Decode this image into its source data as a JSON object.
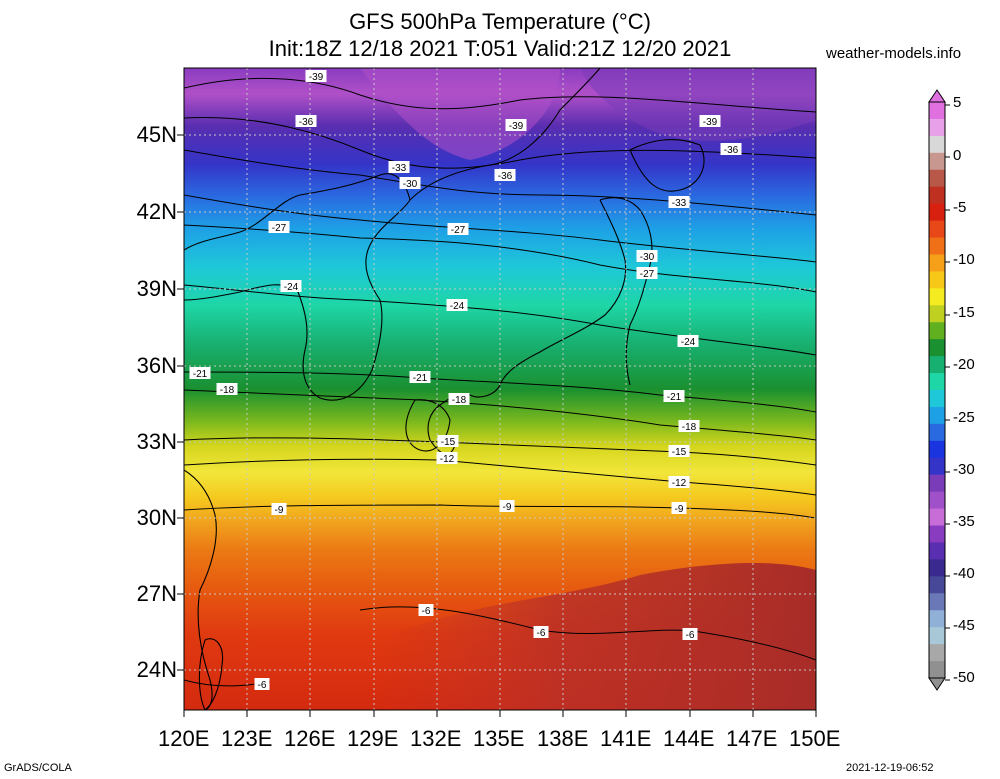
{
  "title_line1": "GFS 500hPa Temperature (°C)",
  "title_line2": "Init:18Z 12/18 2021 T:051 Valid:21Z 12/20 2021",
  "site": "weather-models.info",
  "footer_left": "GrADS/COLA",
  "footer_right": "2021-12-19-06:52",
  "lat_labels": [
    "45N",
    "42N",
    "39N",
    "36N",
    "33N",
    "30N",
    "27N",
    "24N"
  ],
  "lon_labels": [
    "120E",
    "123E",
    "126E",
    "129E",
    "132E",
    "135E",
    "138E",
    "141E",
    "144E",
    "147E",
    "150E"
  ],
  "colorbar_labels": [
    "5",
    "0",
    "-5",
    "-10",
    "-15",
    "-20",
    "-25",
    "-30",
    "-35",
    "-40",
    "-45",
    "-50"
  ],
  "contour_labels": [
    "-39",
    "-36",
    "-39",
    "-39",
    "-36",
    "-33",
    "-30",
    "-36",
    "-33",
    "-27",
    "-27",
    "-30",
    "-27",
    "-24",
    "-24",
    "-24",
    "-21",
    "-21",
    "-21",
    "-18",
    "-18",
    "-18",
    "-15",
    "-12",
    "-15",
    "-12",
    "-9",
    "-9",
    "-9",
    "-6",
    "-6",
    "-6",
    "-6"
  ],
  "colors": {
    "bands": [
      "#c86cd8",
      "#a050c8",
      "#7a3cb8",
      "#5a2eb0",
      "#3434c8",
      "#2a6ae0",
      "#1ea0e6",
      "#1ec8d8",
      "#1ed6a6",
      "#18b070",
      "#1a9030",
      "#7ab81e",
      "#d6d61e",
      "#f2e63a",
      "#f5c81e",
      "#f0a01e",
      "#ec7a14",
      "#e65a10",
      "#e03a10",
      "#d42a10",
      "#cc3a2a",
      "#b03028"
    ]
  }
}
